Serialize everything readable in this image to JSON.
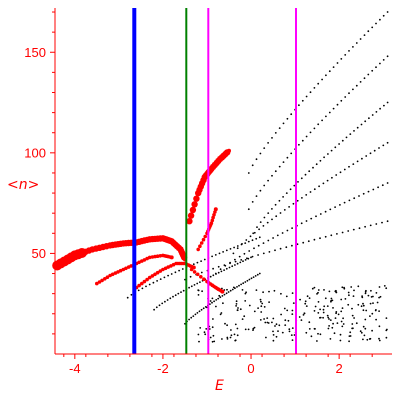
{
  "chart_data": {
    "type": "scatter",
    "title": "",
    "xlabel": "E",
    "ylabel": "<n>",
    "xlim": [
      -4.45,
      3.2
    ],
    "ylim": [
      0,
      172
    ],
    "x_ticks": [
      -4,
      -2,
      0,
      2
    ],
    "x_tick_labels": [
      "-4",
      "-2",
      "0",
      "2"
    ],
    "y_ticks": [
      50,
      100,
      150
    ],
    "y_tick_labels": [
      "50",
      "100",
      "150"
    ],
    "axis_color": "#ff0000",
    "grid": false,
    "vertical_lines": [
      {
        "x": -2.65,
        "color": "#0000ff"
      },
      {
        "x": -1.47,
        "color": "#008000"
      },
      {
        "x": -0.97,
        "color": "#ff00ff"
      },
      {
        "x": 1.02,
        "color": "#ff00ff"
      }
    ],
    "series": [
      {
        "color": "#000000",
        "marker": "small-dot",
        "bands": [
          {
            "x": [
              -0.05,
              3.1
            ],
            "y": [
              90,
              170
            ]
          },
          {
            "x": [
              -0.05,
              3.1
            ],
            "y": [
              72,
              148
            ]
          },
          {
            "x": [
              0.05,
              3.1
            ],
            "y": [
              60,
              125
            ]
          },
          {
            "x": [
              -0.4,
              3.1
            ],
            "y": [
              50,
              105
            ]
          },
          {
            "x": [
              -0.8,
              3.1
            ],
            "y": [
              40,
              85
            ]
          },
          {
            "x": [
              -1.5,
              3.1
            ],
            "y": [
              37,
              66
            ]
          },
          {
            "x": [
              -2.8,
              0.2
            ],
            "y": [
              28,
              58
            ]
          },
          {
            "x": [
              -2.2,
              0.0
            ],
            "y": [
              22,
              48
            ]
          },
          {
            "x": [
              -1.5,
              0.2
            ],
            "y": [
              15,
              40
            ]
          }
        ]
      },
      {
        "color": "#ff0000",
        "marker": "filled-circle",
        "curves": [
          {
            "x": [
              -4.4,
              -4.0,
              -3.6,
              -3.2,
              -2.9,
              -2.6,
              -2.3,
              -2.0,
              -1.8,
              -1.6,
              -1.5
            ],
            "y": [
              44,
              49,
              52,
              54,
              55,
              55.5,
              57,
              57.5,
              56,
              52,
              47
            ]
          },
          {
            "x": [
              -3.5,
              -3.2,
              -2.9,
              -2.6,
              -2.3,
              -2.0,
              -1.8
            ],
            "y": [
              35,
              39,
              42,
              45,
              48,
              49,
              48
            ]
          },
          {
            "x": [
              -2.6,
              -2.3,
              -2.0,
              -1.7,
              -1.5,
              -1.3
            ],
            "y": [
              33,
              38,
              42,
              45,
              45,
              43
            ]
          },
          {
            "x": [
              -1.4,
              -1.2,
              -1.05,
              -0.9,
              -0.7,
              -0.5
            ],
            "y": [
              66,
              80,
              88,
              92,
              97,
              101
            ]
          },
          {
            "x": [
              -1.2,
              -1.0,
              -0.9,
              -0.8
            ],
            "y": [
              52,
              60,
              65,
              72
            ]
          },
          {
            "x": [
              -1.35,
              -1.0,
              -0.8,
              -0.65
            ],
            "y": [
              42,
              36,
              33,
              31
            ]
          }
        ]
      }
    ]
  }
}
